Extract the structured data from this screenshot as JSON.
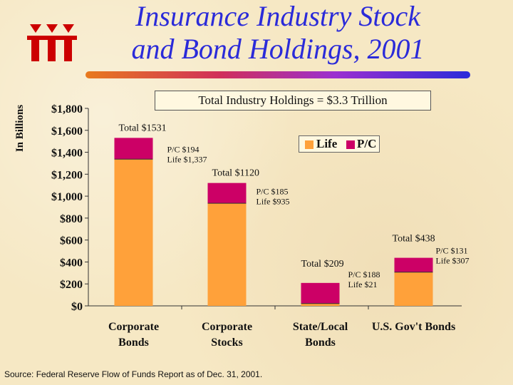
{
  "slide": {
    "title_line1": "Insurance Industry Stock",
    "title_line2": "and Bond Holdings, 2001",
    "subtitle": "Total Industry Holdings = $3.3 Trillion",
    "source": "Source: Federal Reserve Flow of Funds Report as of Dec. 31, 2001.",
    "colors": {
      "life": "#ffa13a",
      "pc": "#cc0066",
      "title": "#2b2bd9",
      "logo": "#cc0000"
    },
    "logo_icon": "iii-logo-icon"
  },
  "chart_data": {
    "type": "bar",
    "stacked": true,
    "ylabel": "In Billions",
    "ylim": [
      0,
      1800
    ],
    "yticks": [
      0,
      200,
      400,
      600,
      800,
      1000,
      1200,
      1400,
      1600,
      1800
    ],
    "ytick_labels": [
      "$0",
      "$200",
      "$400",
      "$600",
      "$800",
      "$1,000",
      "$1,200",
      "$1,400",
      "$1,600",
      "$1,800"
    ],
    "legend": {
      "position": "top-right"
    },
    "categories": [
      {
        "line1": "Corporate",
        "line2": "Bonds"
      },
      {
        "line1": "Corporate",
        "line2": "Stocks"
      },
      {
        "line1": "State/Local",
        "line2": "Bonds"
      },
      {
        "line1": "U.S. Gov't Bonds",
        "line2": ""
      }
    ],
    "series": [
      {
        "name": "Life",
        "values": [
          1337,
          935,
          21,
          307
        ]
      },
      {
        "name": "P/C",
        "values": [
          194,
          185,
          188,
          131
        ]
      }
    ],
    "annotations": [
      {
        "total": "Total $1531",
        "pc": "P/C $194",
        "life": "Life $1,337"
      },
      {
        "total": "Total $1120",
        "pc": "P/C $185",
        "life": "Life $935"
      },
      {
        "total": "Total $209",
        "pc": "P/C $188",
        "life": "Life $21"
      },
      {
        "total": "Total $438",
        "pc": "P/C $131",
        "life": "Life $307"
      }
    ]
  }
}
